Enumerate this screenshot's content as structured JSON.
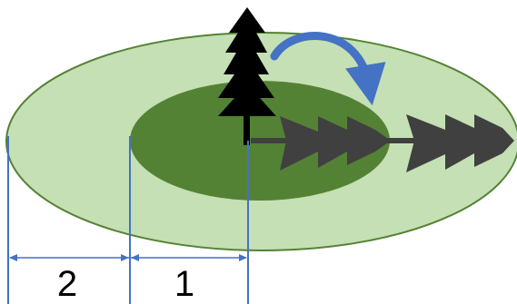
{
  "colors": {
    "outer_zone_fill": "#c5e0b4",
    "outer_zone_stroke": "#548235",
    "inner_zone_fill": "#548235",
    "upright_tree": "#000000",
    "fallen_tree": "#404040",
    "rotation_arrow": "#4472c4",
    "dimension_lines": "#4472c4"
  },
  "icons": {
    "upright_tree": "standing-tree-icon",
    "fallen_tree_inner": "fallen-tree-icon",
    "fallen_tree_outer": "fallen-tree-icon",
    "rotation": "curved-arrow-icon"
  },
  "dimensions": {
    "inner_label": "1",
    "outer_label": "2"
  }
}
